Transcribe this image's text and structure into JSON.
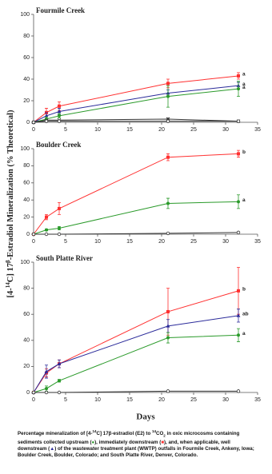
{
  "y_label": [
    "[4-",
    "14",
    "C] 17",
    "β",
    "-Estradiol Mineralization (% Theoretical)"
  ],
  "x_label": "Days",
  "caption": [
    "Percentage mineralization of [4-",
    "14",
    "C] 17β-estradiol (E2) to ",
    "14",
    "CO",
    "2",
    " in oxic microcosms containing sediments collected upstream (",
    "), immediately downstream (",
    "), and, when applicable, well downstream (",
    ") of the wastewater treatment plant (WWTP) outfalls in Fourmile Creek, Ankeny, Iowa; Boulder Creek, Boulder, Colorado; and South Platte River, Denver, Colorado."
  ],
  "chart_data": [
    {
      "type": "line",
      "title": "Fourmile Creek",
      "x": [
        0,
        2,
        4,
        21,
        32
      ],
      "xlim": [
        0,
        35
      ],
      "xticks": [
        0,
        5,
        10,
        15,
        20,
        25,
        30,
        35
      ],
      "ylim": [
        0,
        100
      ],
      "yticks": [
        0,
        20,
        40,
        60,
        80,
        100
      ],
      "series": [
        {
          "color": "#ff3030",
          "marker": "square",
          "values": [
            0,
            9,
            15,
            36,
            43
          ],
          "errors": [
            0,
            4,
            4,
            4,
            3
          ],
          "end_label": "a"
        },
        {
          "color": "#2b2b9a",
          "marker": "triangle",
          "values": [
            0,
            6,
            10,
            27,
            34
          ],
          "errors": [
            0,
            3,
            3,
            3,
            3
          ],
          "end_label": "a"
        },
        {
          "color": "#2a9a2a",
          "marker": "circle",
          "values": [
            0,
            3,
            6,
            24,
            31
          ],
          "errors": [
            0,
            2,
            2,
            10,
            7
          ],
          "end_label": "a"
        },
        {
          "color": "#333333",
          "marker": "x",
          "values": [
            0,
            2,
            2,
            3,
            1
          ],
          "errors": [
            0,
            0,
            0,
            1,
            0
          ]
        },
        {
          "color": "#333333",
          "marker": "open-circle",
          "values": [
            0,
            1,
            1,
            1,
            1
          ],
          "errors": [
            0,
            0,
            0,
            0,
            0
          ]
        }
      ]
    },
    {
      "type": "line",
      "title": "Boulder Creek",
      "x": [
        0,
        2,
        4,
        21,
        32
      ],
      "xlim": [
        0,
        35
      ],
      "xticks": [
        0,
        5,
        10,
        15,
        20,
        25,
        30,
        35
      ],
      "ylim": [
        0,
        100
      ],
      "yticks": [
        0,
        20,
        40,
        60,
        80,
        100
      ],
      "series": [
        {
          "color": "#ff3030",
          "marker": "square",
          "values": [
            0,
            20,
            30,
            90,
            94
          ],
          "errors": [
            0,
            3,
            7,
            4,
            4
          ],
          "end_label": "b"
        },
        {
          "color": "#2a9a2a",
          "marker": "circle",
          "values": [
            0,
            5,
            7,
            36,
            38
          ],
          "errors": [
            0,
            1,
            2,
            6,
            8
          ],
          "end_label": "a"
        },
        {
          "color": "#333333",
          "marker": "open-circle",
          "values": [
            0,
            0,
            0,
            1,
            2
          ],
          "errors": [
            0,
            0,
            0,
            0,
            0
          ]
        }
      ]
    },
    {
      "type": "line",
      "title": "South Platte River",
      "x": [
        0,
        2,
        4,
        21,
        32
      ],
      "xlim": [
        0,
        35
      ],
      "xticks": [
        0,
        5,
        10,
        15,
        20,
        25,
        30,
        35
      ],
      "ylim": [
        0,
        100
      ],
      "yticks": [
        0,
        20,
        40,
        60,
        80,
        100
      ],
      "series": [
        {
          "color": "#ff3030",
          "marker": "square",
          "values": [
            0,
            15,
            22,
            62,
            78
          ],
          "errors": [
            0,
            3,
            3,
            18,
            18
          ],
          "end_label": "b"
        },
        {
          "color": "#2b2b9a",
          "marker": "triangle",
          "values": [
            0,
            16,
            22,
            51,
            59
          ],
          "errors": [
            0,
            5,
            3,
            5,
            5
          ],
          "end_label": "ab"
        },
        {
          "color": "#2a9a2a",
          "marker": "circle",
          "values": [
            0,
            3,
            9,
            42,
            44
          ],
          "errors": [
            0,
            2,
            1,
            4,
            5
          ],
          "end_label": "a"
        },
        {
          "color": "#333333",
          "marker": "open-circle",
          "values": [
            0,
            0,
            0,
            1,
            1
          ],
          "errors": [
            0,
            0,
            0,
            0,
            0
          ]
        }
      ]
    }
  ]
}
